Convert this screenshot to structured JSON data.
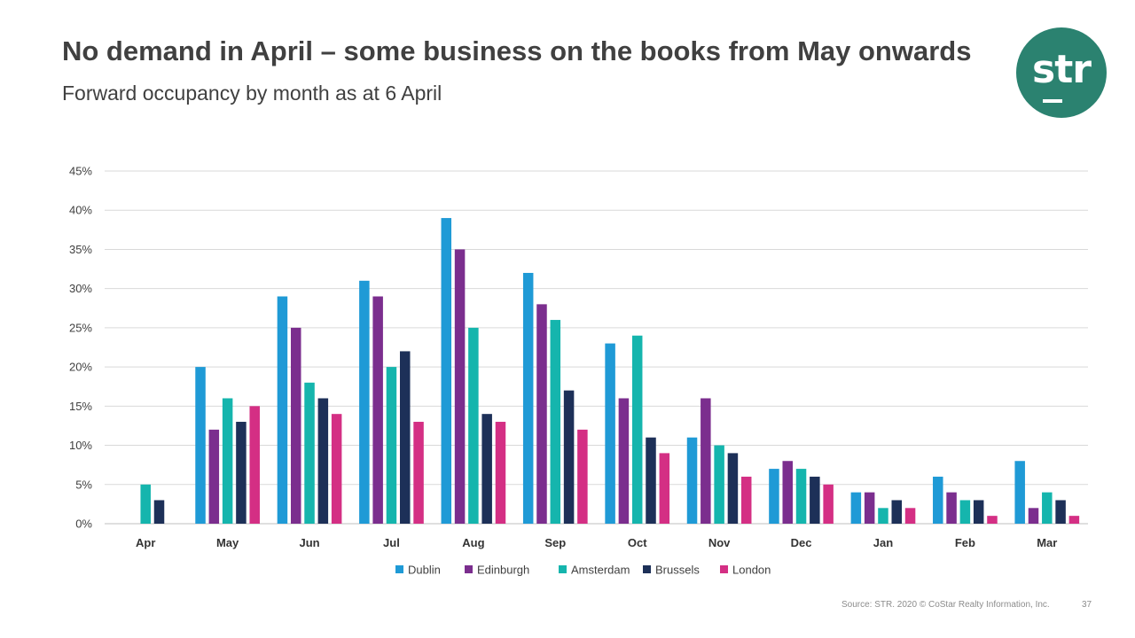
{
  "header": {
    "title": "No demand in April – some business on the books from May onwards",
    "subtitle": "Forward occupancy by month as at 6 April"
  },
  "logo": {
    "text": "str",
    "color": "#2b8270"
  },
  "footer": {
    "source": "Source: STR. 2020 © CoStar Realty Information, Inc.",
    "page_number": "37"
  },
  "chart_data": {
    "type": "bar",
    "title": "",
    "xlabel": "",
    "ylabel": "",
    "ylim": [
      0,
      45
    ],
    "yticks": [
      "0%",
      "5%",
      "10%",
      "15%",
      "20%",
      "25%",
      "30%",
      "35%",
      "40%",
      "45%"
    ],
    "grid": true,
    "legend_position": "bottom",
    "categories": [
      "Apr",
      "May",
      "Jun",
      "Jul",
      "Aug",
      "Sep",
      "Oct",
      "Nov",
      "Dec",
      "Jan",
      "Feb",
      "Mar"
    ],
    "series": [
      {
        "name": "Dublin",
        "color": "#1f9ad6",
        "values": [
          0,
          20,
          29,
          31,
          39,
          32,
          23,
          11,
          7,
          4,
          6,
          8
        ]
      },
      {
        "name": "Edinburgh",
        "color": "#7b2e8e",
        "values": [
          0,
          12,
          25,
          29,
          35,
          28,
          16,
          16,
          8,
          4,
          4,
          2
        ]
      },
      {
        "name": "Amsterdam",
        "color": "#15b5ad",
        "values": [
          5,
          16,
          18,
          20,
          25,
          26,
          24,
          10,
          7,
          2,
          3,
          4
        ]
      },
      {
        "name": "Brussels",
        "color": "#1d3058",
        "values": [
          3,
          13,
          16,
          22,
          14,
          17,
          11,
          9,
          6,
          3,
          3,
          3
        ]
      },
      {
        "name": "London",
        "color": "#d42f84",
        "values": [
          0,
          15,
          14,
          13,
          13,
          12,
          9,
          6,
          5,
          2,
          1,
          1
        ]
      }
    ]
  }
}
